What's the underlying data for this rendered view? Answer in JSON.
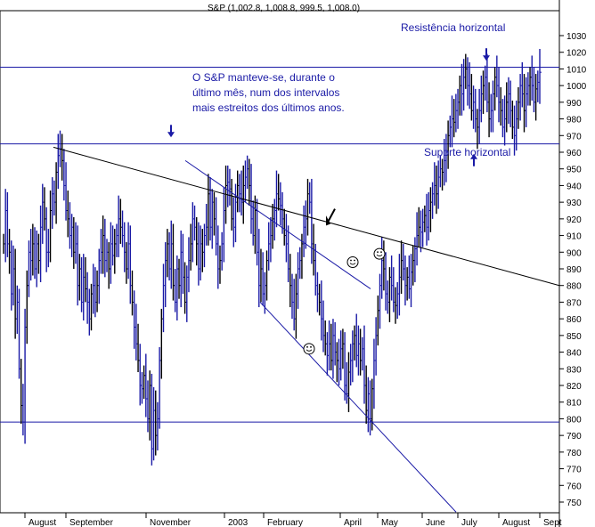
{
  "chart_data": {
    "type": "ohlc",
    "title": "S&P (1,002.8, 1,008.8, 999.5, 1,008.0)",
    "ylim": [
      744,
      1036
    ],
    "yticks": [
      750,
      760,
      770,
      780,
      790,
      800,
      810,
      820,
      830,
      840,
      850,
      860,
      870,
      880,
      890,
      900,
      910,
      920,
      930,
      940,
      950,
      960,
      970,
      980,
      990,
      1000,
      1010,
      1020,
      1030
    ],
    "xlabels": [
      "August",
      "September",
      "November",
      "2003",
      "February",
      "April",
      "May",
      "June",
      "July",
      "August",
      "Sept"
    ],
    "resistance_label": "Resistência horizontal",
    "support_label": "Suporte horizontal",
    "comment_lines": [
      "O S&P manteve-se, durante o",
      "último mês, num dos intervalos",
      "mais estreitos dos últimos anos."
    ],
    "horizontal_levels": [
      1011,
      965,
      798
    ],
    "series_closes": [
      905,
      925,
      905,
      900,
      875,
      890,
      860,
      870,
      830,
      808,
      798,
      855,
      880,
      900,
      895,
      905,
      890,
      905,
      895,
      915,
      930,
      920,
      900,
      900,
      925,
      935,
      930,
      948,
      958,
      962,
      955,
      940,
      925,
      920,
      910,
      915,
      900,
      905,
      880,
      890,
      870,
      885,
      878,
      870,
      860,
      875,
      880,
      870,
      880,
      895,
      900,
      910,
      895,
      900,
      890,
      905,
      898,
      905,
      910,
      920,
      915,
      910,
      900,
      890,
      905,
      880,
      870,
      855,
      845,
      835,
      820,
      818,
      826,
      812,
      800,
      820,
      782,
      805,
      790,
      800,
      835,
      860,
      880,
      895,
      905,
      890,
      905,
      880,
      870,
      890,
      880,
      900,
      885,
      870,
      885,
      895,
      905,
      920,
      915,
      905,
      890,
      905,
      900,
      910,
      915,
      935,
      915,
      930,
      920,
      905,
      890,
      895,
      905,
      925,
      940,
      942,
      938,
      920,
      915,
      930,
      940,
      935,
      930,
      940,
      945,
      950,
      940,
      920,
      910,
      925,
      900,
      880,
      890,
      875,
      880,
      895,
      905,
      910,
      920,
      925,
      935,
      932,
      928,
      920,
      910,
      905,
      890,
      880,
      870,
      860,
      875,
      890,
      895,
      905,
      915,
      920,
      935,
      930,
      905,
      895,
      880,
      875,
      870,
      860,
      850,
      845,
      838,
      845,
      835,
      850,
      840,
      835,
      830,
      842,
      845,
      820,
      815,
      828,
      835,
      845,
      850,
      838,
      845,
      835,
      842,
      820,
      805,
      815,
      800,
      818,
      835,
      850,
      865,
      880,
      895,
      890,
      875,
      870,
      885,
      880,
      870,
      868,
      875,
      885,
      895,
      890,
      880,
      885,
      878,
      888,
      895,
      902,
      910,
      915,
      912,
      918,
      922,
      915,
      925,
      930,
      935,
      940,
      935,
      945,
      950,
      948,
      955,
      960,
      970,
      975,
      980,
      978,
      985,
      990,
      1000,
      995,
      1005,
      1010,
      1000,
      995,
      985,
      990,
      980,
      975,
      985,
      995,
      1000,
      1005,
      990,
      980,
      985,
      995,
      1005,
      1000,
      990,
      985,
      975,
      980,
      990,
      995,
      985,
      975,
      970,
      980,
      990,
      1000,
      995,
      985,
      995,
      1000,
      1005,
      1000,
      990,
      998,
      1002,
      1008
    ]
  }
}
